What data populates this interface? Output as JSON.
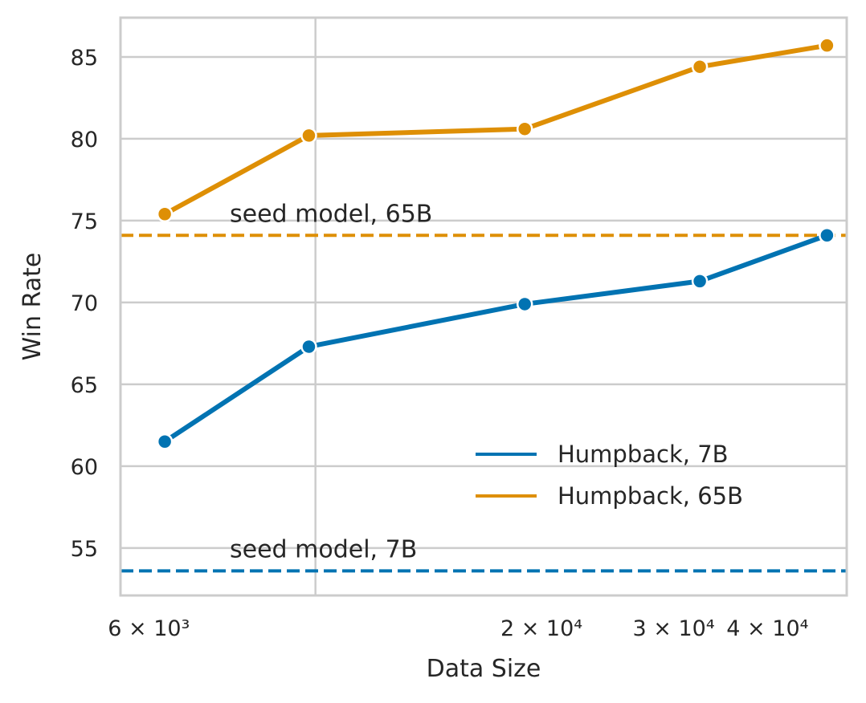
{
  "chart_data": {
    "type": "line",
    "xlabel": "Data Size",
    "ylabel": "Win Rate",
    "x_scale": "log",
    "xlim": [
      5500,
      51000
    ],
    "ylim": [
      52.1,
      87.4
    ],
    "grid": true,
    "x_major_ticks": [
      {
        "value": 10000,
        "label": ""
      }
    ],
    "x_minor_ticks": [
      {
        "value": 6000,
        "label": "6 × 10³"
      },
      {
        "value": 20000,
        "label": "2 × 10⁴"
      },
      {
        "value": 30000,
        "label": "3 × 10⁴"
      },
      {
        "value": 40000,
        "label": "4 × 10⁴"
      }
    ],
    "y_ticks": [
      55,
      60,
      65,
      70,
      75,
      80,
      85
    ],
    "series": [
      {
        "name": "Humpback, 7B",
        "color": "#0173b2",
        "x": [
          6300,
          9800,
          19000,
          32500,
          48000
        ],
        "y": [
          61.5,
          67.3,
          69.9,
          71.3,
          74.1
        ]
      },
      {
        "name": "Humpback, 65B",
        "color": "#de8f05",
        "x": [
          6300,
          9800,
          19000,
          32500,
          48000
        ],
        "y": [
          75.4,
          80.2,
          80.6,
          84.4,
          85.7
        ]
      }
    ],
    "reference_lines": [
      {
        "label": "seed model, 65B",
        "y": 74.1,
        "color": "#de8f05",
        "style": "dashed"
      },
      {
        "label": "seed model, 7B",
        "y": 53.6,
        "color": "#0173b2",
        "style": "dashed"
      }
    ],
    "legend_position": "lower-right"
  }
}
